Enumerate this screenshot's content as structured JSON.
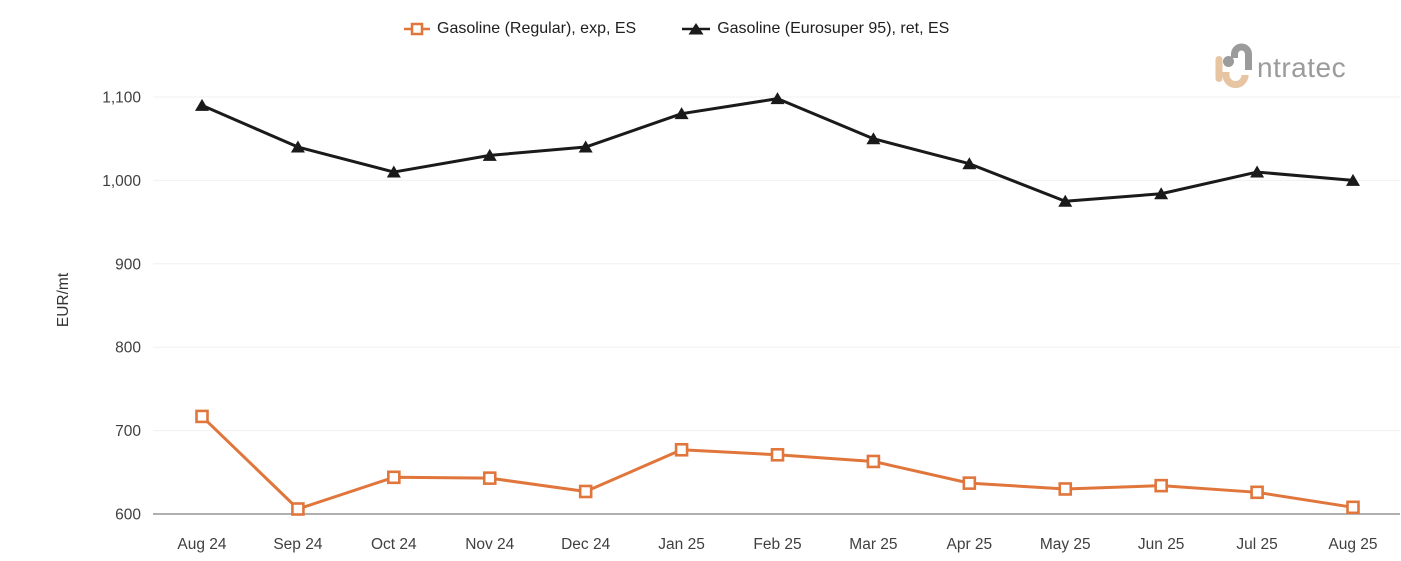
{
  "page": {
    "background": "#FFFFFF"
  },
  "logo": {
    "full_text": "intratec",
    "wordmark": "ntratec",
    "gray": "#9B9B9B",
    "tan": "#E7C5A2"
  },
  "style": {
    "grid_color": "#F0F0F0",
    "axis_color": "#7F7F7F",
    "tick_text_color": "#404040",
    "legend_text_color": "#202020"
  },
  "chart_data": {
    "type": "line",
    "title": "",
    "xlabel": "",
    "ylabel": "EUR/mt",
    "categories": [
      "Aug 24",
      "Sep 24",
      "Oct 24",
      "Nov 24",
      "Dec 24",
      "Jan 25",
      "Feb 25",
      "Mar 25",
      "Apr 25",
      "May 25",
      "Jun 25",
      "Jul 25",
      "Aug 25"
    ],
    "series": [
      {
        "name": "Gasoline (Regular), exp, ES",
        "color": "#E0763C",
        "marker": "open-square",
        "values": [
          717,
          606,
          644,
          643,
          627,
          677,
          671,
          663,
          637,
          630,
          634,
          626,
          608
        ]
      },
      {
        "name": "Gasoline (Eurosuper 95), ret, ES",
        "color": "#1A1A1A",
        "marker": "filled-triangle",
        "values": [
          1090,
          1040,
          1010,
          1030,
          1040,
          1080,
          1098,
          1050,
          1020,
          975,
          984,
          1010,
          1000
        ]
      }
    ],
    "ylim": [
      600,
      1100
    ],
    "yticks": [
      600,
      700,
      800,
      900,
      1000,
      1100
    ],
    "ytick_labels": [
      "600",
      "700",
      "800",
      "900",
      "1,000",
      "1,100"
    ],
    "grid": true,
    "legend_position": "top-center"
  }
}
